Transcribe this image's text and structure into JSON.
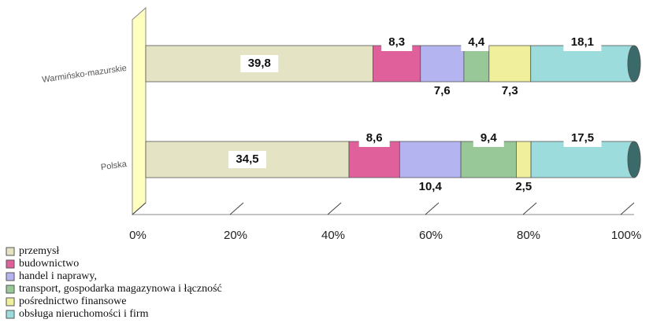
{
  "chart_data": {
    "type": "bar",
    "stacked_percent": true,
    "orientation": "horizontal",
    "categories": [
      "Warmińsko-mazurskie",
      "Polska"
    ],
    "series": [
      {
        "name": "przemysł",
        "color": "#e4e4c4",
        "values": [
          39.8,
          34.5
        ],
        "value_labels": [
          "39,8",
          "34,5"
        ]
      },
      {
        "name": "budownictwo",
        "color": "#e0609c",
        "values": [
          8.3,
          8.6
        ],
        "value_labels": [
          "8,3",
          "8,6"
        ]
      },
      {
        "name": " handel i naprawy,",
        "color": "#b4b4f0",
        "values": [
          7.6,
          10.4
        ],
        "value_labels": [
          "7,6",
          "10,4"
        ]
      },
      {
        "name": "transport, gospodarka magazynowa i łączność",
        "color": "#98c898",
        "values": [
          4.4,
          9.4
        ],
        "value_labels": [
          "4,4",
          "9,4"
        ]
      },
      {
        "name": " pośrednictwo finansowe",
        "color": "#f0f09c",
        "values": [
          7.3,
          2.5
        ],
        "value_labels": [
          "7,3",
          "2,5"
        ]
      },
      {
        "name": " obsługa nieruchomości i firm",
        "color": "#9cdcdc",
        "values": [
          18.1,
          17.5
        ],
        "value_labels": [
          "18,1",
          "17,5"
        ]
      }
    ],
    "xlim": [
      0,
      100
    ],
    "xticks": [
      {
        "value": 0,
        "label": "0%"
      },
      {
        "value": 20,
        "label": "20%"
      },
      {
        "value": 40,
        "label": "40%"
      },
      {
        "value": 60,
        "label": "60%"
      },
      {
        "value": 80,
        "label": "80%"
      },
      {
        "value": 100,
        "label": "100%"
      }
    ],
    "grid": true,
    "legend": "bottom-left"
  }
}
